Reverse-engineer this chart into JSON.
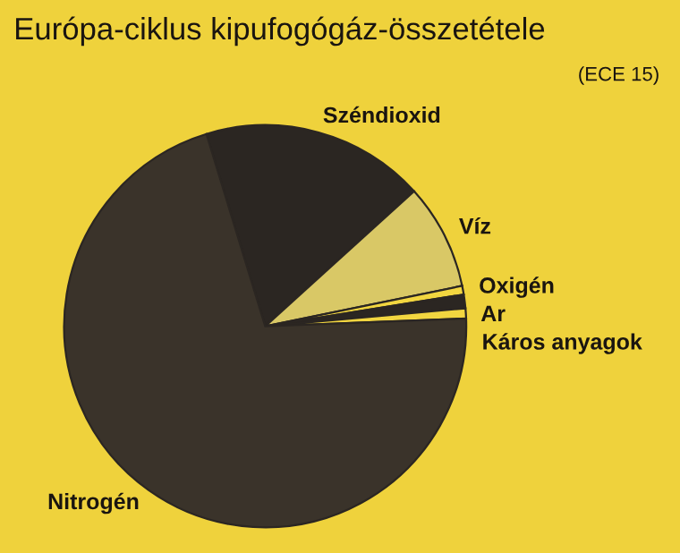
{
  "chart_data": {
    "type": "pie",
    "title": "Európa-ciklus kipufogógáz-összetétele",
    "subtitle": "(ECE 15)",
    "categories": [
      "Széndioxid",
      "Víz",
      "Oxigén",
      "Ar",
      "Káros anyagok",
      "Nitrogén"
    ],
    "values": [
      18,
      8.5,
      0.7,
      1.1,
      0.8,
      70.9
    ],
    "colors": [
      "#2b2622",
      "#d9c866",
      "#f2d640",
      "#2b2622",
      "#f2d640",
      "#3a332a"
    ],
    "legend": false
  }
}
